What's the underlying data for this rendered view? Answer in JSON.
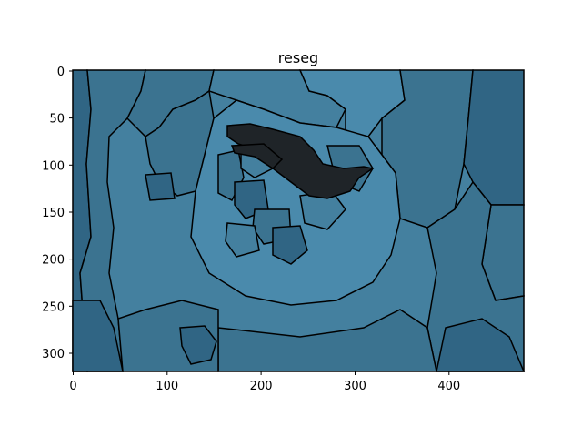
{
  "figure": {
    "title": "reseg"
  },
  "image": {
    "description_kind": "segmentation map",
    "width_units": 480,
    "height_units": 320,
    "colors": {
      "dark_segment": "#1f2428",
      "mid_blue": "#44809f",
      "dark_blue": "#306584",
      "medium_blue": "#3b7390",
      "light_blue": "#4a8aac",
      "boundary": "#000000"
    }
  },
  "axes": {
    "x_ticks": [
      "0",
      "100",
      "200",
      "300",
      "400"
    ],
    "y_ticks": [
      "0",
      "50",
      "100",
      "150",
      "200",
      "250",
      "300"
    ]
  }
}
